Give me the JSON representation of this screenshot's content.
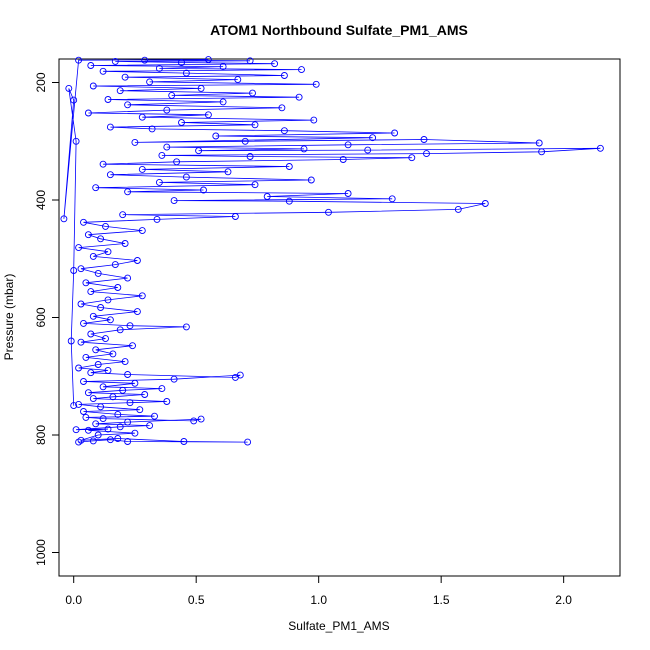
{
  "chart_data": {
    "type": "line",
    "title": "ATOM1 Northbound Sulfate_PM1_AMS",
    "xlabel": "Sulfate_PM1_AMS",
    "ylabel": "Pressure (mbar)",
    "xlim": [
      -0.06,
      2.23
    ],
    "ylim": [
      1040,
      160
    ],
    "y_reversed": true,
    "grid": false,
    "marker": "open-circle",
    "colors": {
      "series": "#0000ff",
      "axes": "#000000"
    },
    "x_ticks": [
      {
        "value": 0.0,
        "label": "0.0"
      },
      {
        "value": 0.5,
        "label": "0.5"
      },
      {
        "value": 1.0,
        "label": "1.0"
      },
      {
        "value": 1.5,
        "label": "1.5"
      },
      {
        "value": 2.0,
        "label": "2.0"
      }
    ],
    "y_ticks": [
      {
        "value": 200,
        "label": "200"
      },
      {
        "value": 400,
        "label": "400"
      },
      {
        "value": 600,
        "label": "600"
      },
      {
        "value": 800,
        "label": "800"
      },
      {
        "value": 1000,
        "label": "1000"
      }
    ],
    "series": [
      {
        "points": [
          [
            0.02,
            812
          ],
          [
            0.08,
            810
          ],
          [
            0.15,
            808
          ],
          [
            0.22,
            811
          ],
          [
            0.71,
            812
          ],
          [
            0.45,
            811
          ],
          [
            0.18,
            806
          ],
          [
            0.03,
            809
          ],
          [
            0.1,
            800
          ],
          [
            0.25,
            797
          ],
          [
            0.06,
            792
          ],
          [
            0.14,
            790
          ],
          [
            0.01,
            791
          ],
          [
            0.19,
            786
          ],
          [
            0.31,
            784
          ],
          [
            0.09,
            781
          ],
          [
            0.22,
            778
          ],
          [
            0.52,
            773
          ],
          [
            0.49,
            776
          ],
          [
            0.12,
            772
          ],
          [
            0.05,
            770
          ],
          [
            0.33,
            768
          ],
          [
            0.18,
            765
          ],
          [
            0.04,
            760
          ],
          [
            0.27,
            757
          ],
          [
            0.11,
            752
          ],
          [
            0.02,
            748
          ],
          [
            0.23,
            745
          ],
          [
            0.38,
            743
          ],
          [
            0.08,
            738
          ],
          [
            0.16,
            735
          ],
          [
            0.29,
            731
          ],
          [
            0.06,
            728
          ],
          [
            0.2,
            724
          ],
          [
            0.36,
            721
          ],
          [
            0.12,
            718
          ],
          [
            0.25,
            712
          ],
          [
            0.04,
            709
          ],
          [
            0.41,
            705
          ],
          [
            0.68,
            698
          ],
          [
            0.66,
            702
          ],
          [
            0.22,
            697
          ],
          [
            0.07,
            694
          ],
          [
            0.14,
            690
          ],
          [
            0.02,
            686
          ],
          [
            0.1,
            680
          ],
          [
            0.21,
            675
          ],
          [
            0.05,
            668
          ],
          [
            0.16,
            662
          ],
          [
            0.09,
            655
          ],
          [
            0.24,
            648
          ],
          [
            0.03,
            642
          ],
          [
            0.13,
            636
          ],
          [
            0.07,
            628
          ],
          [
            0.19,
            621
          ],
          [
            0.46,
            616
          ],
          [
            0.23,
            614
          ],
          [
            0.04,
            610
          ],
          [
            0.15,
            604
          ],
          [
            0.08,
            598
          ],
          [
            0.26,
            590
          ],
          [
            0.11,
            583
          ],
          [
            0.03,
            577
          ],
          [
            0.14,
            570
          ],
          [
            0.28,
            563
          ],
          [
            0.07,
            556
          ],
          [
            0.18,
            549
          ],
          [
            0.05,
            541
          ],
          [
            0.22,
            533
          ],
          [
            0.1,
            525
          ],
          [
            0.03,
            517
          ],
          [
            0.17,
            510
          ],
          [
            0.26,
            503
          ],
          [
            0.08,
            496
          ],
          [
            0.14,
            488
          ],
          [
            0.02,
            481
          ],
          [
            0.21,
            474
          ],
          [
            0.11,
            466
          ],
          [
            0.06,
            459
          ],
          [
            0.28,
            452
          ],
          [
            0.13,
            445
          ],
          [
            0.04,
            438
          ],
          [
            0.34,
            433
          ],
          [
            0.66,
            428
          ],
          [
            0.2,
            425
          ],
          [
            1.04,
            421
          ],
          [
            1.57,
            416
          ],
          [
            1.68,
            406
          ],
          [
            0.88,
            402
          ],
          [
            0.41,
            401
          ],
          [
            1.3,
            398
          ],
          [
            0.79,
            394
          ],
          [
            1.12,
            389
          ],
          [
            0.22,
            386
          ],
          [
            0.53,
            383
          ],
          [
            0.09,
            379
          ],
          [
            0.74,
            374
          ],
          [
            0.35,
            370
          ],
          [
            0.97,
            366
          ],
          [
            0.46,
            361
          ],
          [
            0.15,
            357
          ],
          [
            0.63,
            352
          ],
          [
            0.28,
            348
          ],
          [
            0.88,
            343
          ],
          [
            0.12,
            339
          ],
          [
            0.42,
            335
          ],
          [
            1.1,
            331
          ],
          [
            1.38,
            328
          ],
          [
            0.72,
            326
          ],
          [
            0.36,
            324
          ],
          [
            1.44,
            321
          ],
          [
            1.91,
            318
          ],
          [
            2.15,
            312
          ],
          [
            1.2,
            315
          ],
          [
            0.51,
            316
          ],
          [
            0.94,
            313
          ],
          [
            0.38,
            310
          ],
          [
            1.12,
            306
          ],
          [
            1.9,
            303
          ],
          [
            1.43,
            297
          ],
          [
            0.7,
            300
          ],
          [
            0.25,
            302
          ],
          [
            1.22,
            294
          ],
          [
            0.58,
            291
          ],
          [
            1.31,
            286
          ],
          [
            0.86,
            282
          ],
          [
            0.32,
            279
          ],
          [
            0.15,
            276
          ],
          [
            0.74,
            272
          ],
          [
            0.44,
            268
          ],
          [
            0.98,
            264
          ],
          [
            0.28,
            259
          ],
          [
            0.55,
            255
          ],
          [
            0.06,
            252
          ],
          [
            0.38,
            247
          ],
          [
            0.85,
            243
          ],
          [
            0.22,
            238
          ],
          [
            0.61,
            233
          ],
          [
            0.14,
            229
          ],
          [
            0.92,
            225
          ],
          [
            0.4,
            222
          ],
          [
            0.73,
            218
          ],
          [
            0.19,
            214
          ],
          [
            0.52,
            210
          ],
          [
            0.08,
            206
          ],
          [
            0.99,
            203
          ],
          [
            0.31,
            199
          ],
          [
            0.67,
            195
          ],
          [
            0.21,
            191
          ],
          [
            0.86,
            188
          ],
          [
            0.46,
            184
          ],
          [
            0.12,
            181
          ],
          [
            0.93,
            178
          ],
          [
            0.35,
            176
          ],
          [
            0.61,
            173
          ],
          [
            0.07,
            171
          ],
          [
            0.82,
            168
          ],
          [
            0.44,
            166
          ],
          [
            0.17,
            164
          ],
          [
            0.72,
            163
          ],
          [
            0.29,
            162
          ],
          [
            0.55,
            161
          ],
          [
            0.02,
            162
          ],
          [
            -0.04,
            432
          ],
          [
            0.0,
            230
          ],
          [
            -0.02,
            210
          ],
          [
            0.01,
            300
          ],
          [
            0.0,
            520
          ],
          [
            -0.01,
            640
          ],
          [
            0.0,
            750
          ]
        ]
      }
    ]
  }
}
